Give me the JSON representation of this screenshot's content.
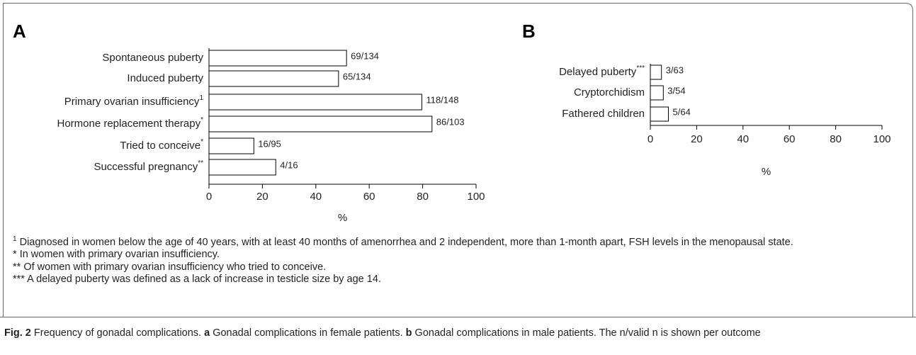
{
  "chart_data": [
    {
      "type": "bar",
      "orientation": "horizontal",
      "label": "A",
      "categories": [
        "Spontaneous puberty",
        "Induced puberty",
        "Primary ovarian insufficiency",
        "Hormone replacement therapy",
        "Tried to conceive",
        "Successful pregnancy"
      ],
      "category_superscripts": [
        null,
        null,
        "1",
        "*",
        "*",
        "**"
      ],
      "values": [
        51.5,
        48.5,
        79.7,
        83.5,
        16.8,
        25.0
      ],
      "value_labels": [
        "69/134",
        "65/134",
        "118/148",
        "86/103",
        "16/95",
        "4/16"
      ],
      "color": "#ffffff",
      "xlabel": "%",
      "xlim": [
        0,
        100
      ],
      "xticks": [
        0,
        20,
        40,
        60,
        80,
        100
      ],
      "grid": false
    },
    {
      "type": "bar",
      "orientation": "horizontal",
      "label": "B",
      "categories": [
        "Delayed puberty",
        "Cryptorchidism",
        "Fathered children"
      ],
      "category_superscripts": [
        "***",
        null,
        null
      ],
      "values": [
        4.8,
        5.6,
        7.8
      ],
      "value_labels": [
        "3/63",
        "3/54",
        "5/64"
      ],
      "color": "#ffffff",
      "xlabel": "%",
      "xlim": [
        0,
        100
      ],
      "xticks": [
        0,
        20,
        40,
        60,
        80,
        100
      ],
      "grid": false
    }
  ],
  "footnotes": [
    {
      "mark": "1",
      "superscript": true,
      "text": "Diagnosed in women below the age of 40 years, with at least 40 months of amenorrhea and 2 independent, more than 1-month apart, FSH levels in the menopausal state."
    },
    {
      "mark": "*",
      "superscript": false,
      "text": "In women with primary ovarian insufficiency."
    },
    {
      "mark": "**",
      "superscript": false,
      "text": "Of women with primary ovarian insufficiency who tried to conceive."
    },
    {
      "mark": "***",
      "superscript": false,
      "text": "A delayed puberty was defined as a lack of increase in testicle size by age 14."
    }
  ],
  "caption": [
    {
      "text": "Fig. 2",
      "bold": true
    },
    {
      "text": " Frequency of gonadal complications. ",
      "bold": false
    },
    {
      "text": "a",
      "bold": true
    },
    {
      "text": " Gonadal complications in female patients. ",
      "bold": false
    },
    {
      "text": "b",
      "bold": true
    },
    {
      "text": " Gonadal complications in male patients. The n/valid n is shown per outcome",
      "bold": false
    }
  ]
}
